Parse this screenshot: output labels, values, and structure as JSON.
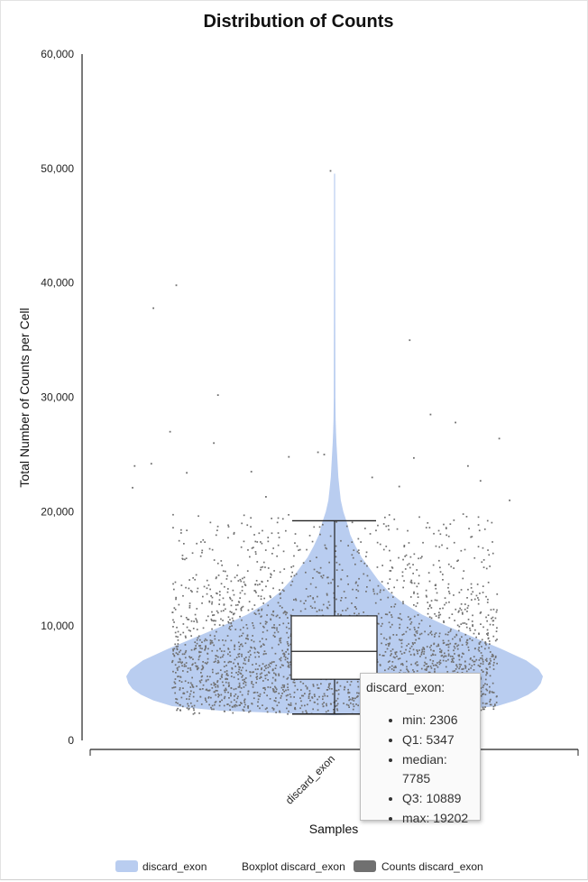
{
  "chart_data": {
    "type": "violin",
    "title": "Distribution of Counts",
    "xlabel": "Samples",
    "ylabel": "Total Number of Counts per Cell",
    "ylim": [
      0,
      60000
    ],
    "yticks": [
      0,
      10000,
      20000,
      30000,
      40000,
      50000,
      60000
    ],
    "ytick_labels": [
      "0",
      "10,000",
      "20,000",
      "30,000",
      "40,000",
      "50,000",
      "60,000"
    ],
    "categories": [
      "discard_exon"
    ],
    "violin": {
      "name": "discard_exon",
      "color": "#b9cdf0",
      "density_profile": [
        [
          2200,
          0.0
        ],
        [
          2600,
          0.55
        ],
        [
          3000,
          0.78
        ],
        [
          3500,
          0.87
        ],
        [
          4000,
          0.93
        ],
        [
          4500,
          0.97
        ],
        [
          5000,
          0.99
        ],
        [
          5600,
          1.0
        ],
        [
          6200,
          0.98
        ],
        [
          7000,
          0.92
        ],
        [
          8000,
          0.8
        ],
        [
          9000,
          0.67
        ],
        [
          10000,
          0.54
        ],
        [
          11000,
          0.42
        ],
        [
          12000,
          0.33
        ],
        [
          13000,
          0.26
        ],
        [
          14000,
          0.21
        ],
        [
          15000,
          0.17
        ],
        [
          16000,
          0.13
        ],
        [
          17000,
          0.1
        ],
        [
          18000,
          0.075
        ],
        [
          19000,
          0.06
        ],
        [
          20000,
          0.042
        ],
        [
          21000,
          0.03
        ],
        [
          22000,
          0.024
        ],
        [
          23000,
          0.018
        ],
        [
          24000,
          0.015
        ],
        [
          25000,
          0.012
        ],
        [
          26000,
          0.009
        ],
        [
          27000,
          0.007
        ],
        [
          28000,
          0.005
        ],
        [
          30000,
          0.004
        ],
        [
          35000,
          0.0035
        ],
        [
          40000,
          0.003
        ],
        [
          45000,
          0.0028
        ],
        [
          49500,
          0.0025
        ],
        [
          49600,
          0.0
        ]
      ]
    },
    "boxplot": {
      "name": "Boxplot discard_exon",
      "min": 2306,
      "q1": 5347,
      "median": 7785,
      "q3": 10889,
      "max": 19202
    },
    "points": {
      "name": "Counts discard_exon",
      "color": "#707070",
      "outliers": [
        [
          -0.87,
          37800
        ],
        [
          -0.76,
          39800
        ],
        [
          -0.56,
          30200
        ],
        [
          -0.58,
          26000
        ],
        [
          -0.79,
          27000
        ],
        [
          -0.96,
          24000
        ],
        [
          -0.88,
          24200
        ],
        [
          -0.71,
          23400
        ],
        [
          -0.97,
          22100
        ],
        [
          -0.4,
          23500
        ],
        [
          -0.22,
          24800
        ],
        [
          -0.08,
          25200
        ],
        [
          -0.05,
          25000
        ],
        [
          0.36,
          35000
        ],
        [
          0.46,
          28500
        ],
        [
          0.58,
          27800
        ],
        [
          0.79,
          26400
        ],
        [
          0.64,
          24000
        ],
        [
          0.7,
          22700
        ],
        [
          -0.02,
          49800
        ],
        [
          0.38,
          24700
        ],
        [
          0.18,
          23000
        ],
        [
          0.31,
          22200
        ],
        [
          0.84,
          21000
        ],
        [
          -0.33,
          21300
        ]
      ]
    },
    "legend": [
      {
        "label": "discard_exon",
        "color": "#b9cdf0"
      },
      {
        "label": "Boxplot discard_exon",
        "color": ""
      },
      {
        "label": "Counts discard_exon",
        "color": "#707070"
      }
    ],
    "legend_position": "bottom"
  },
  "tooltip": {
    "title": "discard_exon:",
    "items": [
      "min: 2306",
      "Q1: 5347",
      "median: 7785",
      "Q3: 10889",
      "max: 19202"
    ]
  }
}
